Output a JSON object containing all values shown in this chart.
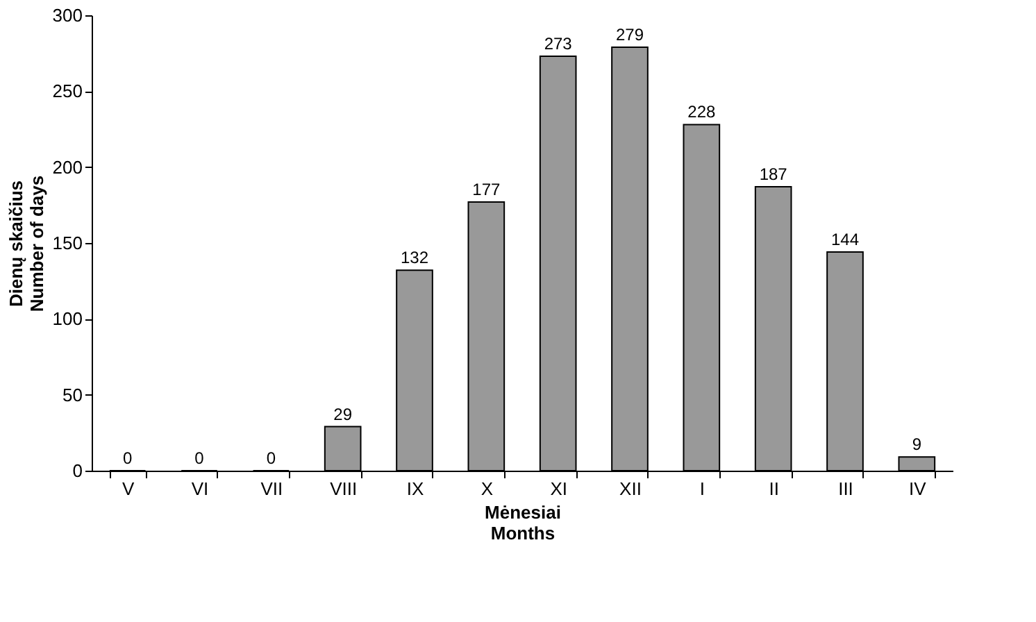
{
  "chart_data": {
    "type": "bar",
    "categories": [
      "V",
      "VI",
      "VII",
      "VIII",
      "IX",
      "X",
      "XI",
      "XII",
      "I",
      "II",
      "III",
      "IV"
    ],
    "values": [
      0,
      0,
      0,
      29,
      132,
      177,
      273,
      279,
      228,
      187,
      144,
      9
    ],
    "color": "#999999",
    "xlabel": "Mėnesiai\nMonths",
    "ylabel": "Dienų skaičius\nNumber of days",
    "ylim": [
      0,
      300
    ],
    "yticks": [
      0,
      50,
      100,
      150,
      200,
      250,
      300
    ],
    "data_labels": true,
    "grid": false
  }
}
